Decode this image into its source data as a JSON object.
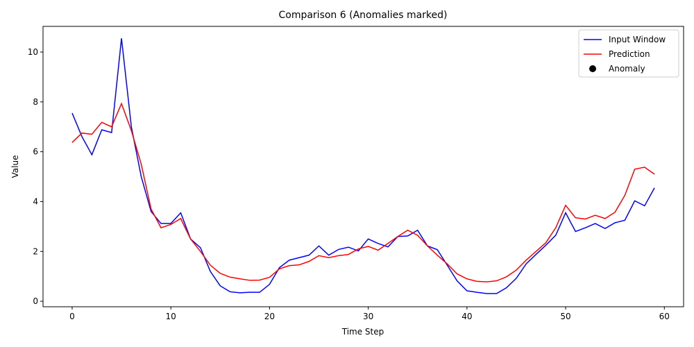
{
  "chart_data": {
    "type": "line",
    "title": "Comparison 6 (Anomalies marked)",
    "xlabel": "Time Step",
    "ylabel": "Value",
    "x": [
      0,
      1,
      2,
      3,
      4,
      5,
      6,
      7,
      8,
      9,
      10,
      11,
      12,
      13,
      14,
      15,
      16,
      17,
      18,
      19,
      20,
      21,
      22,
      23,
      24,
      25,
      26,
      27,
      28,
      29,
      30,
      31,
      32,
      33,
      34,
      35,
      36,
      37,
      38,
      39,
      40,
      41,
      42,
      43,
      44,
      45,
      46,
      47,
      48,
      49,
      50,
      51,
      52,
      53,
      54,
      55,
      56,
      57,
      58,
      59
    ],
    "series": [
      {
        "name": "Input Window",
        "color": "#0000ff",
        "values": [
          7.55,
          6.6,
          5.88,
          6.88,
          6.77,
          10.55,
          7.0,
          5.0,
          3.6,
          3.12,
          3.12,
          3.55,
          2.5,
          2.15,
          1.2,
          0.62,
          0.38,
          0.34,
          0.36,
          0.36,
          0.68,
          1.35,
          1.65,
          1.75,
          1.85,
          2.22,
          1.85,
          2.08,
          2.17,
          2.02,
          2.5,
          2.32,
          2.18,
          2.6,
          2.62,
          2.85,
          2.22,
          2.07,
          1.45,
          0.82,
          0.42,
          0.36,
          0.31,
          0.31,
          0.54,
          0.92,
          1.5,
          1.88,
          2.25,
          2.65,
          3.55,
          2.8,
          2.95,
          3.12,
          2.92,
          3.15,
          3.25,
          4.03,
          3.83,
          4.55
        ]
      },
      {
        "name": "Prediction",
        "color": "#ff0000",
        "values": [
          6.37,
          6.75,
          6.7,
          7.18,
          7.0,
          7.93,
          6.85,
          5.5,
          3.7,
          2.95,
          3.08,
          3.32,
          2.5,
          2.0,
          1.45,
          1.12,
          0.97,
          0.9,
          0.84,
          0.85,
          0.96,
          1.3,
          1.43,
          1.46,
          1.6,
          1.83,
          1.75,
          1.83,
          1.88,
          2.1,
          2.2,
          2.05,
          2.32,
          2.6,
          2.85,
          2.65,
          2.22,
          1.85,
          1.5,
          1.1,
          0.9,
          0.8,
          0.78,
          0.82,
          0.98,
          1.25,
          1.65,
          2.0,
          2.35,
          2.95,
          3.85,
          3.35,
          3.3,
          3.45,
          3.32,
          3.57,
          4.25,
          5.3,
          5.38,
          5.1
        ]
      },
      {
        "name": "Anomaly",
        "type": "scatter",
        "color": "#000000",
        "x": [],
        "values": []
      }
    ],
    "xlim": [
      -2.95,
      61.95
    ],
    "xticks": [
      0,
      10,
      20,
      30,
      40,
      50,
      60
    ],
    "ylim": [
      -0.22,
      11.03
    ],
    "yticks": [
      0,
      2,
      4,
      6,
      8,
      10
    ],
    "legend": "upper right",
    "grid": false
  }
}
